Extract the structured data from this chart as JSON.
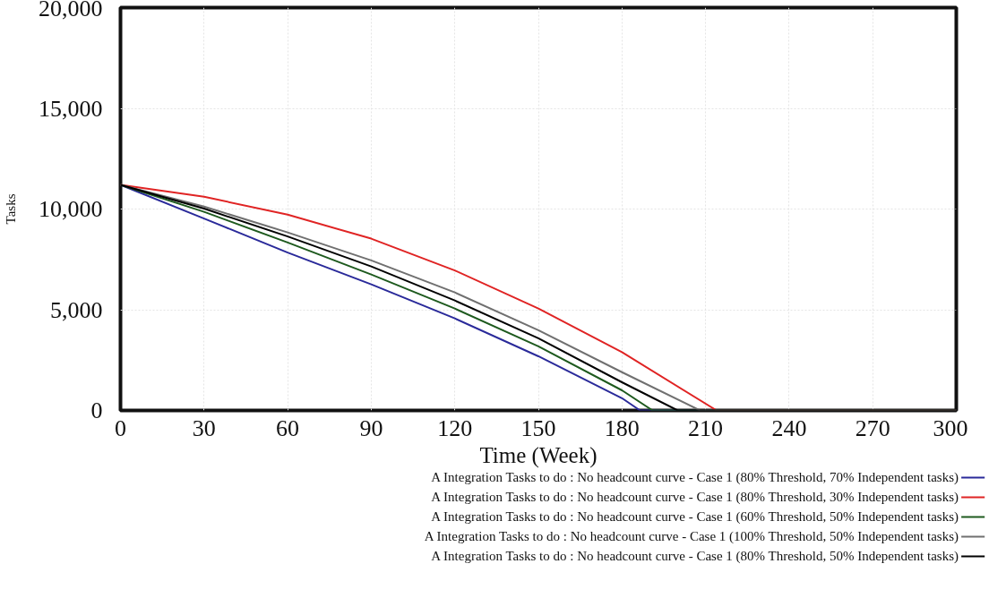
{
  "chart_data": {
    "type": "line",
    "xlabel": "Time (Week)",
    "ylabel": "Tasks",
    "xlim": [
      0,
      300
    ],
    "ylim": [
      0,
      20000
    ],
    "xticks": [
      0,
      30,
      60,
      90,
      120,
      150,
      180,
      210,
      240,
      270,
      300
    ],
    "yticks": [
      {
        "value": 0,
        "label": "0"
      },
      {
        "value": 5000,
        "label": "5,000"
      },
      {
        "value": 10000,
        "label": "10,000"
      },
      {
        "value": 15000,
        "label": "15,000"
      },
      {
        "value": 20000,
        "label": "20,000"
      }
    ],
    "grid": true,
    "legend": "bottom",
    "line_style": "solid",
    "series": [
      {
        "name": "A Integration Tasks to do : No headcount curve - Case 1 (80% Threshold, 70% Independent tasks)",
        "color": "#2a2a9a",
        "x": [
          0,
          30,
          60,
          90,
          120,
          150,
          180,
          186.5,
          300
        ],
        "values": [
          11200,
          9530,
          7840,
          6260,
          4570,
          2690,
          610,
          0,
          0
        ]
      },
      {
        "name": "A Integration Tasks to do : No headcount curve - Case 1 (80% Threshold, 30% Independent tasks)",
        "color": "#e02424",
        "x": [
          0,
          30,
          60,
          90,
          120,
          150,
          180,
          214,
          300
        ],
        "values": [
          11200,
          10610,
          9720,
          8530,
          6950,
          5060,
          2890,
          0,
          0
        ]
      },
      {
        "name": "A Integration Tasks to do : No headcount curve - Case 1 (60% Threshold, 50% Independent tasks)",
        "color": "#1e5a1e",
        "x": [
          0,
          30,
          60,
          90,
          120,
          150,
          180,
          191,
          300
        ],
        "values": [
          11200,
          9860,
          8340,
          6750,
          5060,
          3180,
          1000,
          0,
          0
        ]
      },
      {
        "name": "A Integration Tasks to do : No headcount curve - Case 1 (100% Threshold, 50% Independent tasks)",
        "color": "#707070",
        "x": [
          0,
          30,
          60,
          90,
          120,
          150,
          180,
          208,
          300
        ],
        "values": [
          11200,
          10120,
          8840,
          7450,
          5860,
          3980,
          1900,
          0,
          0
        ]
      },
      {
        "name": "A Integration Tasks to do : No headcount curve - Case 1 (80% Threshold, 50% Independent tasks)",
        "color": "#000000",
        "x": [
          0,
          30,
          60,
          90,
          120,
          150,
          180,
          200,
          300
        ],
        "values": [
          11200,
          10020,
          8640,
          7150,
          5460,
          3580,
          1400,
          0,
          0
        ]
      }
    ]
  }
}
